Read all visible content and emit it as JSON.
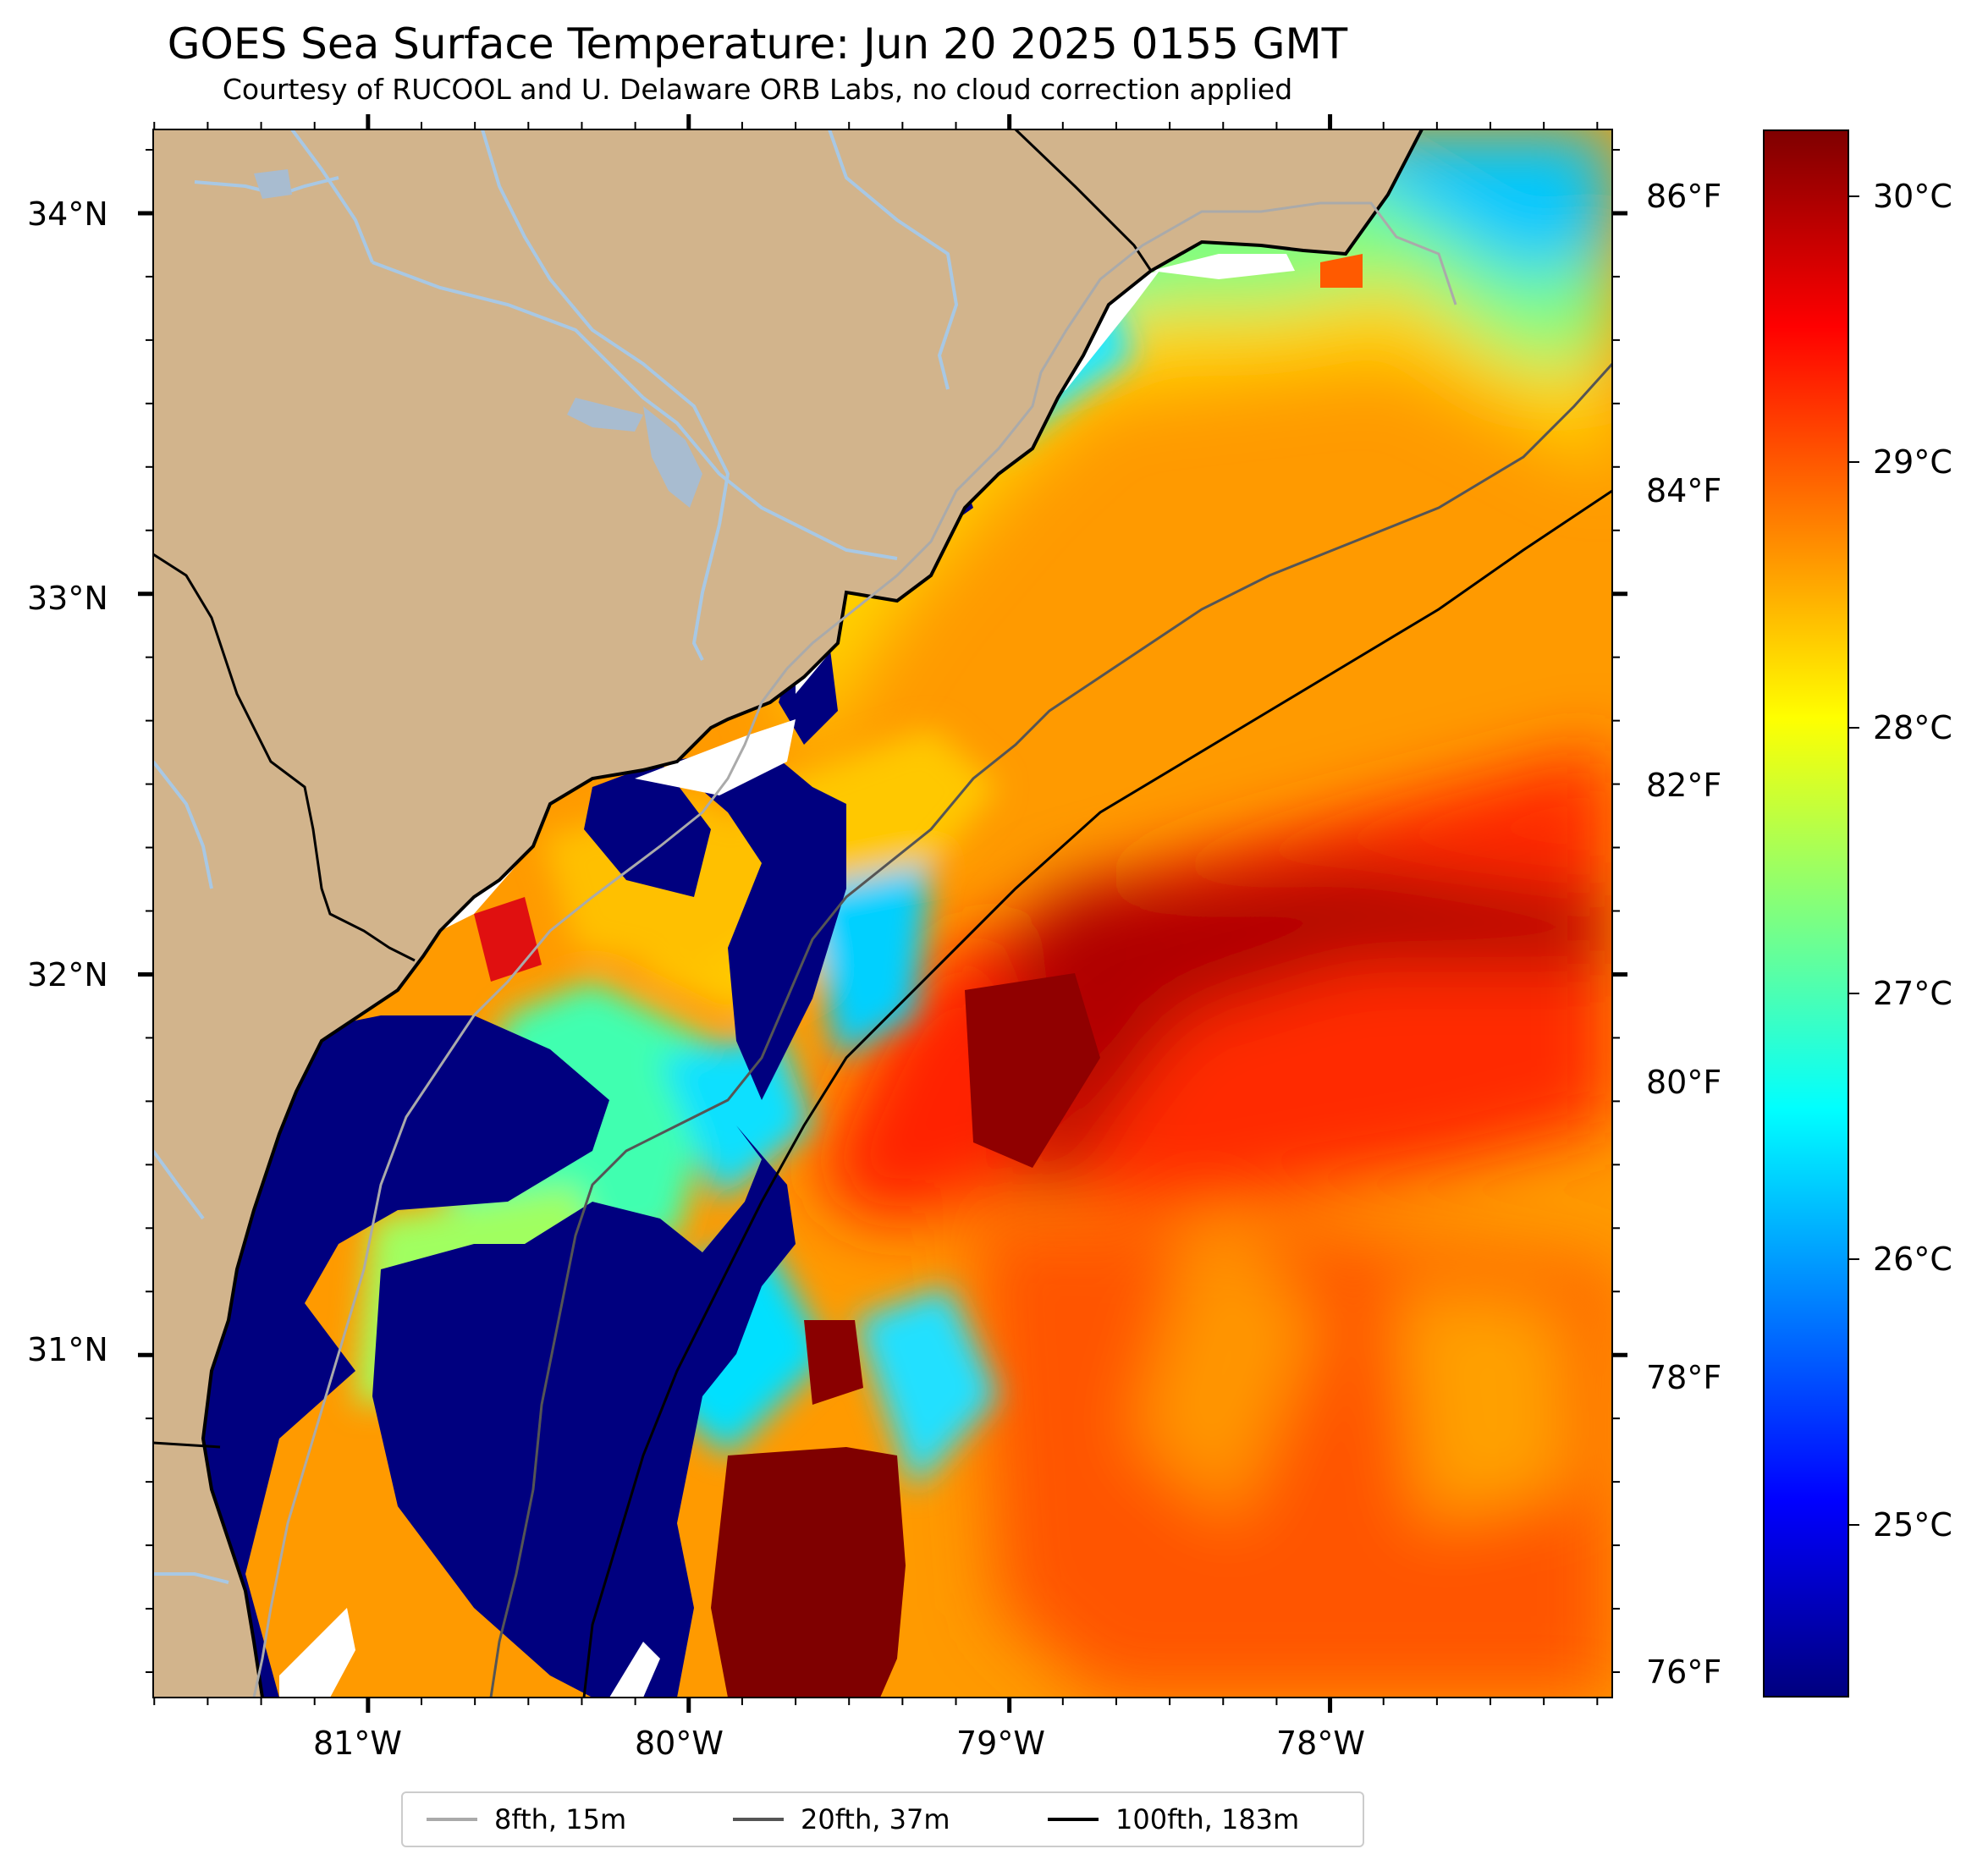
{
  "title": "GOES Sea Surface Temperature: Jun 20 2025 0155 GMT",
  "subtitle": "Courtesy of RUCOOL and U. Delaware ORB Labs, no cloud correction applied",
  "map": {
    "lon_range": [
      -81.67,
      -77.12
    ],
    "lat_range": [
      30.1,
      34.22
    ],
    "lat_ticks": [
      {
        "value": 34,
        "label": "34°N"
      },
      {
        "value": 33,
        "label": "33°N"
      },
      {
        "value": 32,
        "label": "32°N"
      },
      {
        "value": 31,
        "label": "31°N"
      }
    ],
    "lon_ticks": [
      {
        "value": -81,
        "label": "81°W"
      },
      {
        "value": -80,
        "label": "80°W"
      },
      {
        "value": -79,
        "label": "79°W"
      },
      {
        "value": -78,
        "label": "78°W"
      }
    ],
    "land_color": "#d2b48c",
    "no_data_color": "#ffffff"
  },
  "colorbar": {
    "colormap": "jet",
    "range_c": [
      24.3,
      30.2
    ],
    "celsius_ticks": [
      {
        "value": 30,
        "label": "30°C"
      },
      {
        "value": 29,
        "label": "29°C"
      },
      {
        "value": 28,
        "label": "28°C"
      },
      {
        "value": 27,
        "label": "27°C"
      },
      {
        "value": 26,
        "label": "26°C"
      },
      {
        "value": 25,
        "label": "25°C"
      }
    ],
    "fahrenheit_ticks": [
      {
        "value": 86,
        "label": "86°F"
      },
      {
        "value": 84,
        "label": "84°F"
      },
      {
        "value": 82,
        "label": "82°F"
      },
      {
        "value": 80,
        "label": "80°F"
      },
      {
        "value": 78,
        "label": "78°F"
      },
      {
        "value": 76,
        "label": "76°F"
      }
    ]
  },
  "legend": [
    {
      "label": "8fth, 15m",
      "color": "#aaaaaa"
    },
    {
      "label": "20fth, 37m",
      "color": "#555555"
    },
    {
      "label": "100fth, 183m",
      "color": "#000000"
    }
  ]
}
